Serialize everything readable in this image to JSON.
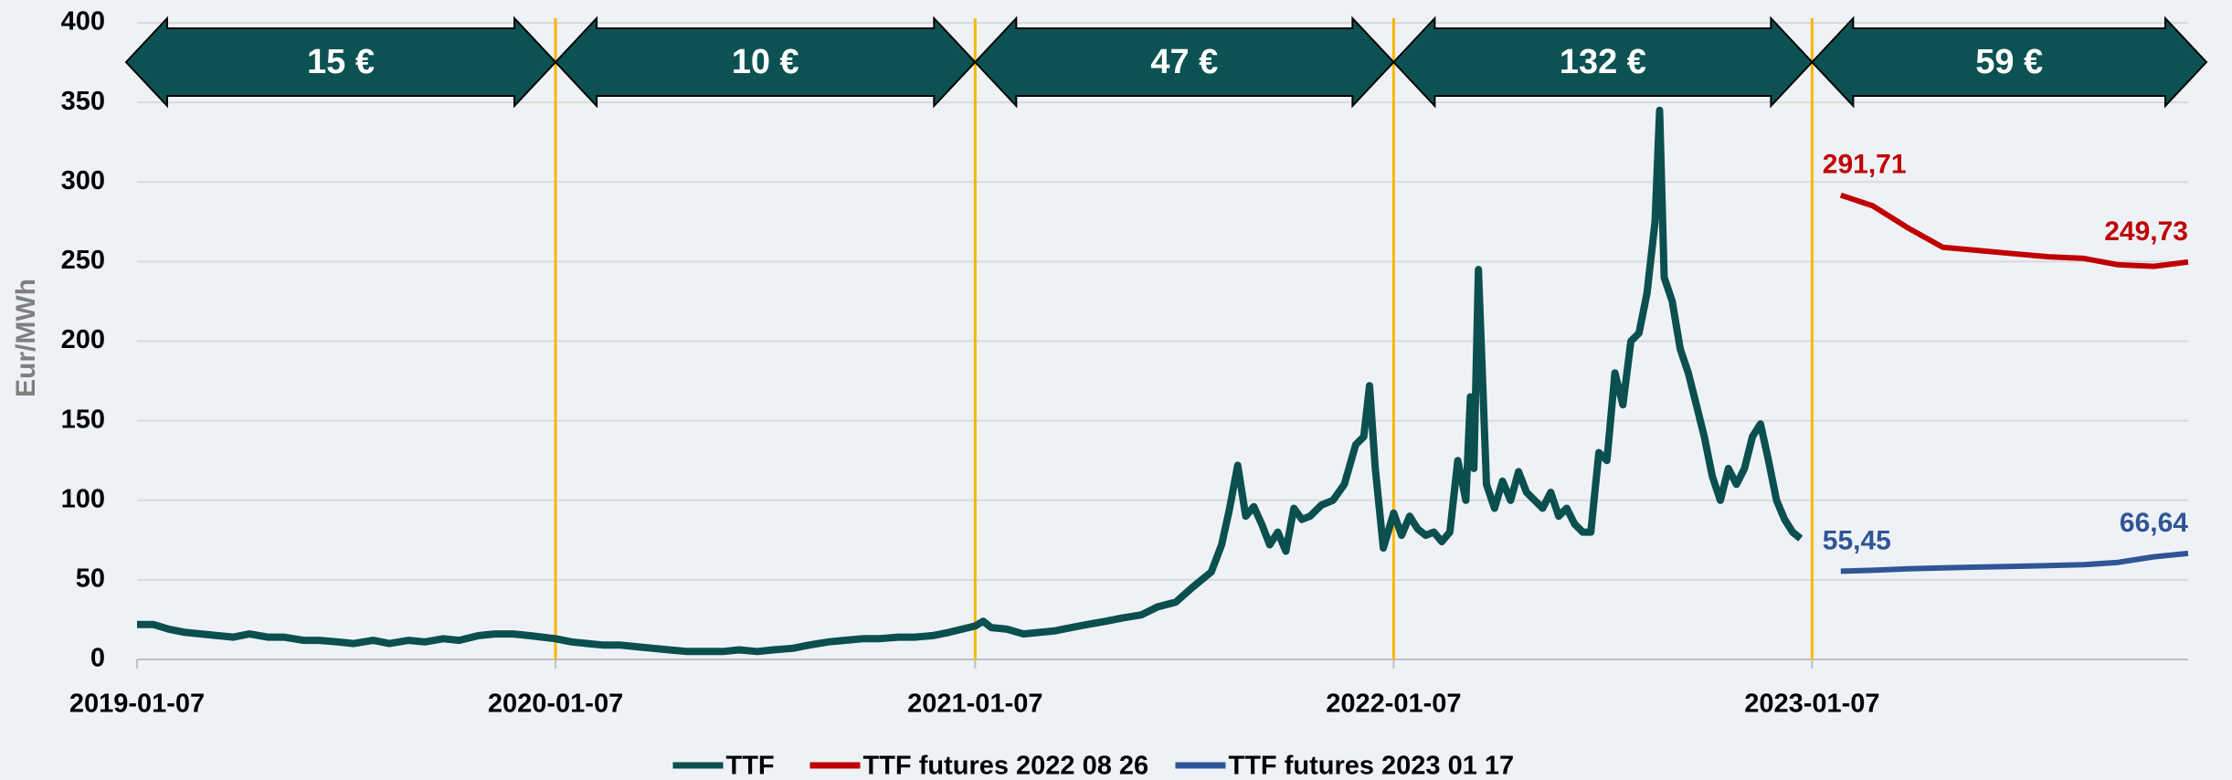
{
  "chart_data": {
    "type": "line",
    "y_label": "Eur/MWh",
    "xlim": [
      "2019-01-07",
      "2023-12-01"
    ],
    "xticks": [
      "2019-01-07",
      "2020-01-07",
      "2021-01-07",
      "2022-01-07",
      "2023-01-07"
    ],
    "ylim": [
      0,
      400
    ],
    "yticks": [
      0,
      50,
      100,
      150,
      200,
      250,
      300,
      350,
      400
    ],
    "grid": true,
    "legend": "bottom",
    "periods": [
      {
        "label": "15 €",
        "start": "2019-01-07",
        "end": "2020-01-07"
      },
      {
        "label": "10 €",
        "start": "2020-01-07",
        "end": "2021-01-07"
      },
      {
        "label": "47 €",
        "start": "2021-01-07",
        "end": "2022-01-07"
      },
      {
        "label": "132 €",
        "start": "2022-01-07",
        "end": "2023-01-07"
      },
      {
        "label": "59 €",
        "start": "2023-01-07",
        "end": "2023-12-01"
      }
    ],
    "period_color": "#0d5252",
    "divider_color": "#f5b800",
    "series": [
      {
        "name": "TTF",
        "color": "#0b4f4f",
        "x": [
          "2019-01-07",
          "2019-01-21",
          "2019-02-04",
          "2019-02-18",
          "2019-03-04",
          "2019-03-18",
          "2019-04-01",
          "2019-04-15",
          "2019-05-01",
          "2019-05-15",
          "2019-06-01",
          "2019-06-15",
          "2019-07-01",
          "2019-07-15",
          "2019-08-01",
          "2019-08-15",
          "2019-09-01",
          "2019-09-15",
          "2019-10-01",
          "2019-10-15",
          "2019-11-01",
          "2019-11-15",
          "2019-12-01",
          "2019-12-15",
          "2020-01-07",
          "2020-01-21",
          "2020-02-04",
          "2020-02-18",
          "2020-03-04",
          "2020-03-18",
          "2020-04-01",
          "2020-04-15",
          "2020-05-01",
          "2020-05-15",
          "2020-06-01",
          "2020-06-15",
          "2020-07-01",
          "2020-07-15",
          "2020-08-01",
          "2020-08-15",
          "2020-09-01",
          "2020-09-15",
          "2020-10-01",
          "2020-10-15",
          "2020-11-01",
          "2020-11-15",
          "2020-12-01",
          "2020-12-15",
          "2021-01-07",
          "2021-01-14",
          "2021-01-21",
          "2021-02-04",
          "2021-02-18",
          "2021-03-04",
          "2021-03-18",
          "2021-04-01",
          "2021-04-15",
          "2021-05-01",
          "2021-05-15",
          "2021-06-01",
          "2021-06-15",
          "2021-07-01",
          "2021-07-15",
          "2021-08-01",
          "2021-08-10",
          "2021-08-17",
          "2021-08-24",
          "2021-08-31",
          "2021-09-07",
          "2021-09-14",
          "2021-09-21",
          "2021-09-28",
          "2021-10-05",
          "2021-10-12",
          "2021-10-19",
          "2021-10-26",
          "2021-11-05",
          "2021-11-15",
          "2021-11-25",
          "2021-12-05",
          "2021-12-12",
          "2021-12-17",
          "2021-12-22",
          "2021-12-29",
          "2022-01-07",
          "2022-01-14",
          "2022-01-21",
          "2022-01-28",
          "2022-02-04",
          "2022-02-11",
          "2022-02-18",
          "2022-02-25",
          "2022-03-04",
          "2022-03-11",
          "2022-03-15",
          "2022-03-18",
          "2022-03-22",
          "2022-03-29",
          "2022-04-05",
          "2022-04-12",
          "2022-04-19",
          "2022-04-26",
          "2022-05-03",
          "2022-05-10",
          "2022-05-17",
          "2022-05-24",
          "2022-05-31",
          "2022-06-07",
          "2022-06-14",
          "2022-06-21",
          "2022-06-28",
          "2022-07-05",
          "2022-07-12",
          "2022-07-19",
          "2022-07-26",
          "2022-08-02",
          "2022-08-09",
          "2022-08-16",
          "2022-08-23",
          "2022-08-27",
          "2022-08-31",
          "2022-09-07",
          "2022-09-14",
          "2022-09-21",
          "2022-09-28",
          "2022-10-05",
          "2022-10-12",
          "2022-10-19",
          "2022-10-26",
          "2022-11-02",
          "2022-11-09",
          "2022-11-16",
          "2022-11-23",
          "2022-11-30",
          "2022-12-07",
          "2022-12-14",
          "2022-12-21",
          "2022-12-28"
        ],
        "values": [
          22,
          22,
          19,
          17,
          16,
          15,
          14,
          16,
          14,
          14,
          12,
          12,
          11,
          10,
          12,
          10,
          12,
          11,
          13,
          12,
          15,
          16,
          16,
          15,
          13,
          11,
          10,
          9,
          9,
          8,
          7,
          6,
          5,
          5,
          5,
          6,
          5,
          6,
          7,
          9,
          11,
          12,
          13,
          13,
          14,
          14,
          15,
          17,
          21,
          24,
          20,
          19,
          16,
          17,
          18,
          20,
          22,
          24,
          26,
          28,
          33,
          36,
          45,
          55,
          72,
          95,
          122,
          90,
          96,
          85,
          72,
          80,
          68,
          95,
          88,
          90,
          97,
          100,
          110,
          135,
          140,
          172,
          120,
          70,
          92,
          78,
          90,
          82,
          78,
          80,
          74,
          80,
          125,
          100,
          165,
          120,
          245,
          110,
          95,
          112,
          100,
          118,
          105,
          100,
          95,
          105,
          90,
          95,
          85,
          80,
          80,
          130,
          125,
          180,
          160,
          200,
          205,
          230,
          275,
          345,
          240,
          225,
          195,
          180,
          160,
          140,
          115,
          100,
          120,
          110,
          120,
          140,
          148,
          125,
          100,
          88,
          80,
          76
        ]
      },
      {
        "name": "TTF futures 2022 08 26",
        "color": "#c00000",
        "x": [
          "2023-02-01",
          "2023-03-01",
          "2023-04-01",
          "2023-05-01",
          "2023-06-01",
          "2023-07-01",
          "2023-08-01",
          "2023-09-01",
          "2023-10-01",
          "2023-11-01",
          "2023-12-01"
        ],
        "values": [
          291.71,
          285,
          271,
          259,
          257,
          255,
          253,
          252,
          248,
          247,
          249.73
        ],
        "value_labels": [
          "291,71",
          null,
          null,
          null,
          null,
          null,
          null,
          null,
          null,
          null,
          "249,73"
        ]
      },
      {
        "name": "TTF futures 2023 01 17",
        "color": "#2f5597",
        "x": [
          "2023-02-01",
          "2023-03-01",
          "2023-04-01",
          "2023-05-01",
          "2023-06-01",
          "2023-07-01",
          "2023-08-01",
          "2023-09-01",
          "2023-10-01",
          "2023-11-01",
          "2023-12-01"
        ],
        "values": [
          55.45,
          56,
          57,
          57.5,
          58,
          58.5,
          59,
          59.5,
          61,
          64.5,
          66.64
        ],
        "value_labels": [
          "55,45",
          null,
          null,
          null,
          null,
          null,
          null,
          null,
          null,
          null,
          "66,64"
        ]
      }
    ]
  }
}
